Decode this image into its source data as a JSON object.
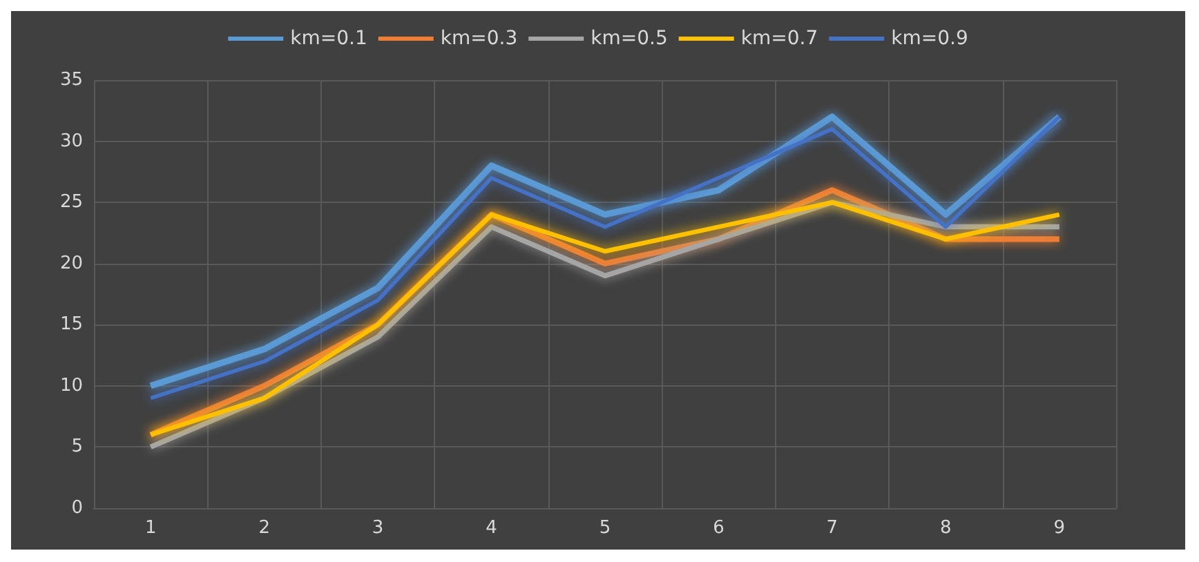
{
  "chart_data": {
    "type": "line",
    "categories": [
      "1",
      "2",
      "3",
      "4",
      "5",
      "6",
      "7",
      "8",
      "9"
    ],
    "series": [
      {
        "name": "km=0.1",
        "color": "#5b9bd5",
        "values": [
          10,
          13,
          18,
          28,
          24,
          26,
          32,
          24,
          32
        ]
      },
      {
        "name": "km=0.3",
        "color": "#ed7d31",
        "values": [
          6,
          10,
          15,
          24,
          20,
          22,
          26,
          22,
          22
        ]
      },
      {
        "name": "km=0.5",
        "color": "#a5a5a5",
        "values": [
          5,
          9,
          14,
          23,
          19,
          22,
          25,
          23,
          23
        ]
      },
      {
        "name": "km=0.7",
        "color": "#ffc000",
        "values": [
          6,
          9,
          15,
          24,
          21,
          23,
          25,
          22,
          24
        ]
      },
      {
        "name": "km=0.9",
        "color": "#4472c4",
        "values": [
          9,
          12,
          17,
          27,
          23,
          27,
          31,
          23,
          32
        ]
      }
    ],
    "ylim": [
      0,
      35
    ],
    "yticks": [
      0,
      5,
      10,
      15,
      20,
      25,
      30,
      35
    ],
    "grid": true,
    "legend": "top",
    "marker": "none",
    "line_style": "solid"
  }
}
